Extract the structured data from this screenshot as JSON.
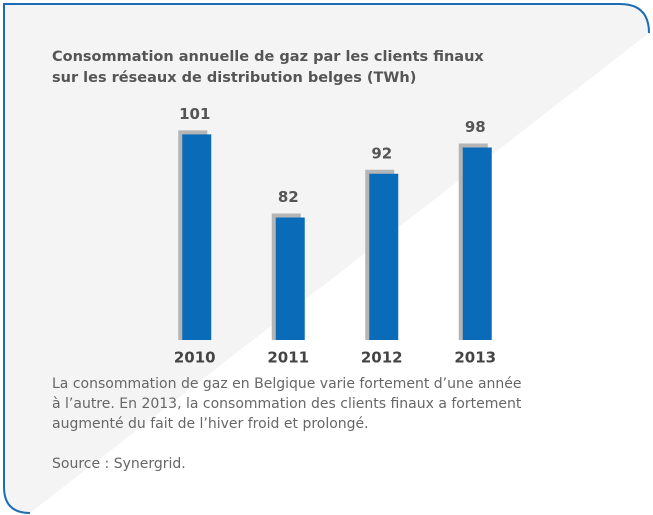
{
  "chart_data": {
    "type": "bar",
    "title": [
      "Consommation annuelle de gaz par les clients finaux",
      "sur les réseaux de distribution belges (TWh)"
    ],
    "categories": [
      "2010",
      "2011",
      "2012",
      "2013"
    ],
    "values": [
      101,
      82,
      92,
      98
    ],
    "color": "#0a6cb8",
    "shadow_color": "#b5b5b5",
    "ylim": [
      54,
      110
    ]
  },
  "caption": [
    "La consommation de gaz en Belgique varie fortement d’une année",
    "à l’autre. En 2013, la consommation des clients finaux a fortement",
    "augmenté du fait de l’hiver froid et prolongé."
  ],
  "source": "Source : Synergrid."
}
